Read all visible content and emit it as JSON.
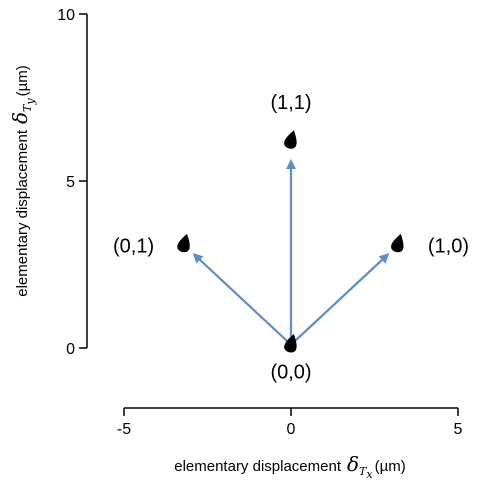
{
  "chart_data": {
    "type": "scatter",
    "xlim": [
      -5,
      5
    ],
    "ylim": [
      0,
      10
    ],
    "x_ticks": [
      -5,
      0,
      5
    ],
    "y_ticks": [
      0,
      5,
      10
    ],
    "xlabel": {
      "text": "elementary displacement",
      "symbol": "δ",
      "sub_main": "T",
      "sub_sub": "x",
      "unit": "(µm)"
    },
    "ylabel": {
      "text": "elementary displacement",
      "symbol": "δ",
      "sub_main": "T",
      "sub_sub": "y",
      "unit": "(µm)"
    },
    "points": [
      {
        "label": "(0,0)",
        "x": 0.0,
        "y": 0.1
      },
      {
        "label": "(0,1)",
        "x": -3.2,
        "y": 3.1
      },
      {
        "label": "(1,1)",
        "x": 0.0,
        "y": 6.2
      },
      {
        "label": "(1,0)",
        "x": 3.2,
        "y": 3.1
      }
    ],
    "arrows": [
      {
        "from": [
          0.0,
          0.1
        ],
        "to": [
          -2.9,
          2.8
        ]
      },
      {
        "from": [
          0.0,
          0.1
        ],
        "to": [
          0.0,
          5.6
        ]
      },
      {
        "from": [
          0.0,
          0.1
        ],
        "to": [
          2.9,
          2.8
        ]
      }
    ],
    "grid": false,
    "colors": {
      "arrow": "#5b8fc7",
      "marker": "#000000",
      "axis": "#000000"
    }
  }
}
